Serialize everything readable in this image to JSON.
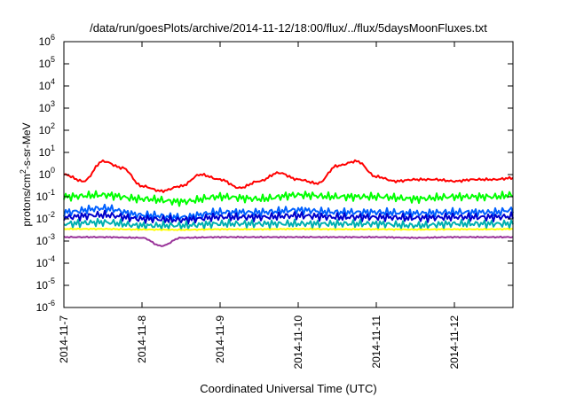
{
  "chart_data": {
    "type": "line",
    "title": "/data/run/goesPlots/archive/2014-11-12/18:00/flux/../flux/5daysMoonFluxes.txt",
    "xlabel": "Coordinated Universal Time (UTC)",
    "ylabel": "protons/cm²-s-sr-MeV",
    "xlim": [
      "2014-11-07",
      "2014-11-12T18:00"
    ],
    "ylim": [
      1e-06,
      1000000.0
    ],
    "yscale": "log",
    "grid": false,
    "legend": "none",
    "x_ticks": [
      "2014-11-7",
      "2014-11-8",
      "2014-11-9",
      "2014-11-10",
      "2014-11-11",
      "2014-11-12"
    ],
    "y_ticks": [
      {
        "base": "10",
        "exp": "6"
      },
      {
        "base": "10",
        "exp": "5"
      },
      {
        "base": "10",
        "exp": "4"
      },
      {
        "base": "10",
        "exp": "3"
      },
      {
        "base": "10",
        "exp": "2"
      },
      {
        "base": "10",
        "exp": "1"
      },
      {
        "base": "10",
        "exp": "0"
      },
      {
        "base": "10",
        "exp": "-1"
      },
      {
        "base": "10",
        "exp": "-2"
      },
      {
        "base": "10",
        "exp": "-3"
      },
      {
        "base": "10",
        "exp": "-4"
      },
      {
        "base": "10",
        "exp": "-5"
      },
      {
        "base": "10",
        "exp": "-6"
      }
    ],
    "series": [
      {
        "color": "#ff0000",
        "x": [
          "2014-11-07T00:00",
          "2014-11-07T06:00",
          "2014-11-07T12:00",
          "2014-11-07T18:00",
          "2014-11-08T00:00",
          "2014-11-08T06:00",
          "2014-11-08T12:00",
          "2014-11-08T18:00",
          "2014-11-09T00:00",
          "2014-11-09T06:00",
          "2014-11-09T12:00",
          "2014-11-09T18:00",
          "2014-11-10T00:00",
          "2014-11-10T06:00",
          "2014-11-10T12:00",
          "2014-11-10T18:00",
          "2014-11-11T00:00",
          "2014-11-11T06:00",
          "2014-11-11T12:00",
          "2014-11-11T18:00",
          "2014-11-12T00:00",
          "2014-11-12T06:00",
          "2014-11-12T12:00",
          "2014-11-12T18:00"
        ],
        "values": [
          1.0,
          0.5,
          4.0,
          2.0,
          0.3,
          0.18,
          0.3,
          1.0,
          0.6,
          0.25,
          0.5,
          1.2,
          0.6,
          0.4,
          2.5,
          4.0,
          0.8,
          0.5,
          0.6,
          0.6,
          0.5,
          0.6,
          0.6,
          0.7
        ]
      },
      {
        "color": "#00ff00",
        "x": [
          "2014-11-07T00:00",
          "2014-11-07T12:00",
          "2014-11-08T00:00",
          "2014-11-08T12:00",
          "2014-11-09T00:00",
          "2014-11-09T12:00",
          "2014-11-10T00:00",
          "2014-11-10T12:00",
          "2014-11-11T00:00",
          "2014-11-11T12:00",
          "2014-11-12T00:00",
          "2014-11-12T12:00",
          "2014-11-12T18:00"
        ],
        "values": [
          0.1,
          0.12,
          0.08,
          0.06,
          0.1,
          0.08,
          0.12,
          0.1,
          0.1,
          0.08,
          0.1,
          0.1,
          0.12
        ]
      },
      {
        "color": "#0060ff",
        "x": [
          "2014-11-07T00:00",
          "2014-11-07T12:00",
          "2014-11-08T00:00",
          "2014-11-08T12:00",
          "2014-11-09T00:00",
          "2014-11-09T12:00",
          "2014-11-10T00:00",
          "2014-11-10T12:00",
          "2014-11-11T00:00",
          "2014-11-11T12:00",
          "2014-11-12T00:00",
          "2014-11-12T12:00",
          "2014-11-12T18:00"
        ],
        "values": [
          0.02,
          0.03,
          0.015,
          0.012,
          0.02,
          0.02,
          0.025,
          0.02,
          0.02,
          0.018,
          0.02,
          0.02,
          0.025
        ]
      },
      {
        "color": "#0000cc",
        "x": [
          "2014-11-07T00:00",
          "2014-11-07T12:00",
          "2014-11-08T00:00",
          "2014-11-08T12:00",
          "2014-11-09T00:00",
          "2014-11-09T12:00",
          "2014-11-10T00:00",
          "2014-11-10T12:00",
          "2014-11-11T00:00",
          "2014-11-11T12:00",
          "2014-11-12T00:00",
          "2014-11-12T12:00",
          "2014-11-12T18:00"
        ],
        "values": [
          0.012,
          0.015,
          0.01,
          0.009,
          0.012,
          0.012,
          0.014,
          0.012,
          0.012,
          0.011,
          0.012,
          0.012,
          0.013
        ]
      },
      {
        "color": "#00b0b0",
        "x": [
          "2014-11-07T00:00",
          "2014-11-07T12:00",
          "2014-11-08T00:00",
          "2014-11-08T12:00",
          "2014-11-09T00:00",
          "2014-11-09T12:00",
          "2014-11-10T00:00",
          "2014-11-10T12:00",
          "2014-11-11T00:00",
          "2014-11-11T12:00",
          "2014-11-12T00:00",
          "2014-11-12T12:00",
          "2014-11-12T18:00"
        ],
        "values": [
          0.006,
          0.007,
          0.005,
          0.005,
          0.006,
          0.006,
          0.006,
          0.006,
          0.006,
          0.005,
          0.006,
          0.006,
          0.006
        ]
      },
      {
        "color": "#ffff00",
        "x": [
          "2014-11-07T00:00",
          "2014-11-07T12:00",
          "2014-11-08T00:00",
          "2014-11-08T12:00",
          "2014-11-09T00:00",
          "2014-11-09T12:00",
          "2014-11-10T00:00",
          "2014-11-10T12:00",
          "2014-11-11T00:00",
          "2014-11-11T12:00",
          "2014-11-12T00:00",
          "2014-11-12T12:00",
          "2014-11-12T18:00"
        ],
        "values": [
          0.0035,
          0.0035,
          0.0033,
          0.0032,
          0.0034,
          0.0034,
          0.0035,
          0.0034,
          0.0034,
          0.0033,
          0.0034,
          0.0034,
          0.0035
        ]
      },
      {
        "color": "#993399",
        "x": [
          "2014-11-07T00:00",
          "2014-11-07T12:00",
          "2014-11-08T00:00",
          "2014-11-08T06:00",
          "2014-11-08T12:00",
          "2014-11-09T00:00",
          "2014-11-09T12:00",
          "2014-11-10T00:00",
          "2014-11-10T12:00",
          "2014-11-11T00:00",
          "2014-11-11T12:00",
          "2014-11-12T00:00",
          "2014-11-12T12:00",
          "2014-11-12T18:00"
        ],
        "values": [
          0.0015,
          0.0015,
          0.0014,
          0.0006,
          0.0014,
          0.0015,
          0.0015,
          0.0015,
          0.0015,
          0.0015,
          0.0014,
          0.0015,
          0.0015,
          0.0015
        ]
      }
    ]
  }
}
